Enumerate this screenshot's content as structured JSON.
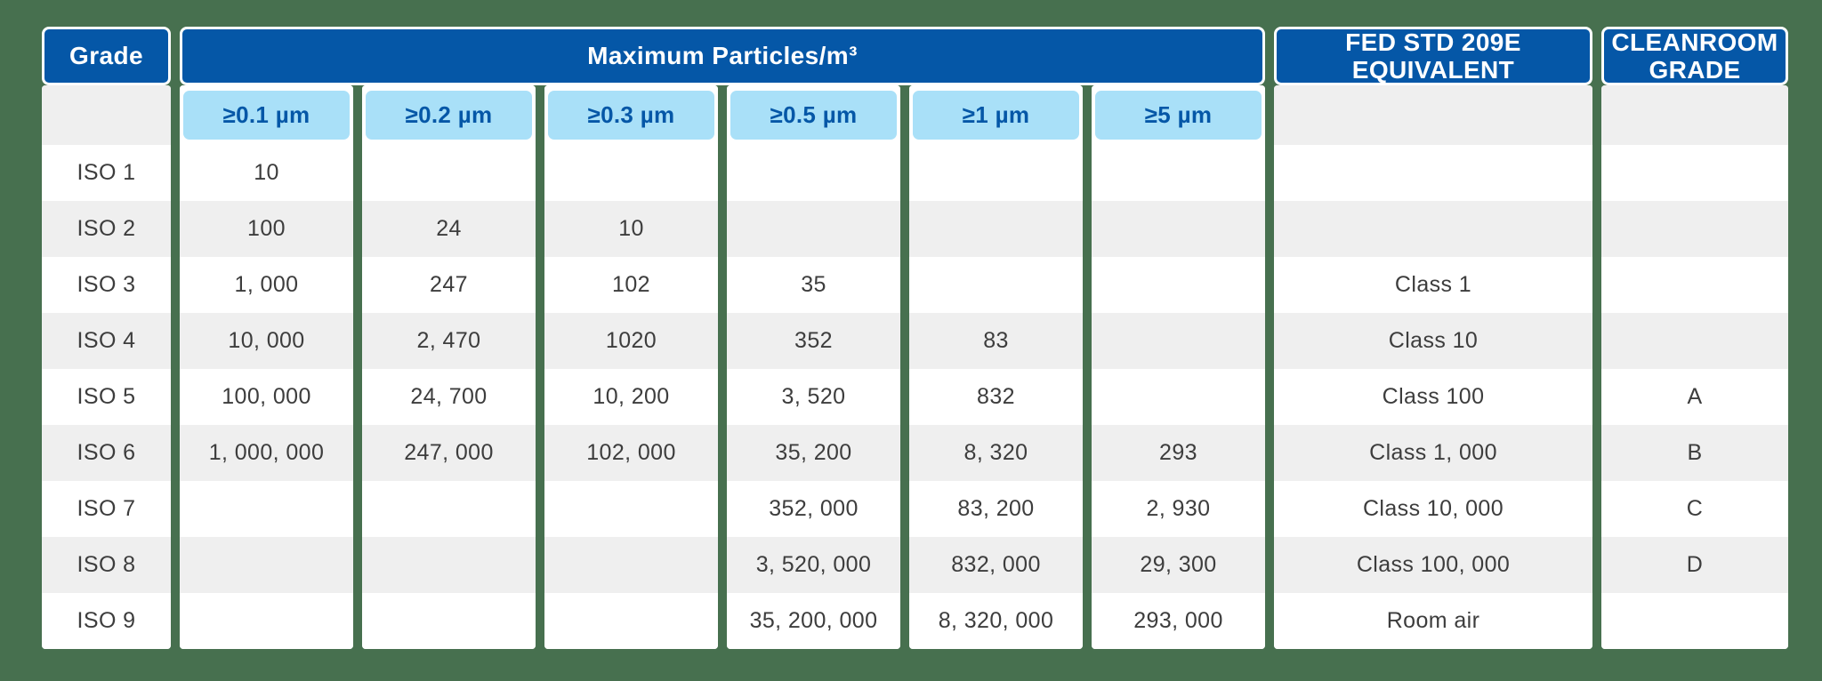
{
  "colors": {
    "page_bg": "#47704f",
    "header_blue": "#0557a7",
    "header_text": "#ffffff",
    "chip_bg": "#a9e0f8",
    "chip_text": "#0557a7",
    "row_alt": "#efefef",
    "cell_text": "#3d3d3d"
  },
  "chart_data": {
    "type": "table",
    "header_groups": {
      "grade": "Grade",
      "max_particles": "Maximum Particles/m³",
      "fed_std": "FED STD 209E EQUIVALENT",
      "cleanroom_grade": "CLEANROOM GRADE"
    },
    "particle_columns": [
      {
        "key": "p01",
        "label": "≥0.1 µm"
      },
      {
        "key": "p02",
        "label": "≥0.2 µm"
      },
      {
        "key": "p03",
        "label": "≥0.3 µm"
      },
      {
        "key": "p05",
        "label": "≥0.5 µm"
      },
      {
        "key": "p1",
        "label": "≥1 µm"
      },
      {
        "key": "p5",
        "label": "≥5 µm"
      }
    ],
    "rows": [
      {
        "grade": "ISO 1",
        "p01": "10",
        "p02": "",
        "p03": "",
        "p05": "",
        "p1": "",
        "p5": "",
        "fed_std": "",
        "cleanroom_grade": ""
      },
      {
        "grade": "ISO 2",
        "p01": "100",
        "p02": "24",
        "p03": "10",
        "p05": "",
        "p1": "",
        "p5": "",
        "fed_std": "",
        "cleanroom_grade": ""
      },
      {
        "grade": "ISO 3",
        "p01": "1, 000",
        "p02": "247",
        "p03": "102",
        "p05": "35",
        "p1": "",
        "p5": "",
        "fed_std": "Class 1",
        "cleanroom_grade": ""
      },
      {
        "grade": "ISO 4",
        "p01": "10, 000",
        "p02": "2, 470",
        "p03": "1020",
        "p05": "352",
        "p1": "83",
        "p5": "",
        "fed_std": "Class 10",
        "cleanroom_grade": ""
      },
      {
        "grade": "ISO 5",
        "p01": "100, 000",
        "p02": "24, 700",
        "p03": "10, 200",
        "p05": "3, 520",
        "p1": "832",
        "p5": "",
        "fed_std": "Class 100",
        "cleanroom_grade": "A"
      },
      {
        "grade": "ISO 6",
        "p01": "1, 000, 000",
        "p02": "247, 000",
        "p03": "102, 000",
        "p05": "35, 200",
        "p1": "8, 320",
        "p5": "293",
        "fed_std": "Class 1, 000",
        "cleanroom_grade": "B"
      },
      {
        "grade": "ISO 7",
        "p01": "",
        "p02": "",
        "p03": "",
        "p05": "352, 000",
        "p1": "83, 200",
        "p5": "2, 930",
        "fed_std": "Class 10, 000",
        "cleanroom_grade": "C"
      },
      {
        "grade": "ISO 8",
        "p01": "",
        "p02": "",
        "p03": "",
        "p05": "3, 520, 000",
        "p1": "832, 000",
        "p5": "29, 300",
        "fed_std": "Class 100, 000",
        "cleanroom_grade": "D"
      },
      {
        "grade": "ISO 9",
        "p01": "",
        "p02": "",
        "p03": "",
        "p05": "35, 200, 000",
        "p1": "8, 320, 000",
        "p5": "293, 000",
        "fed_std": "Room air",
        "cleanroom_grade": ""
      }
    ]
  }
}
